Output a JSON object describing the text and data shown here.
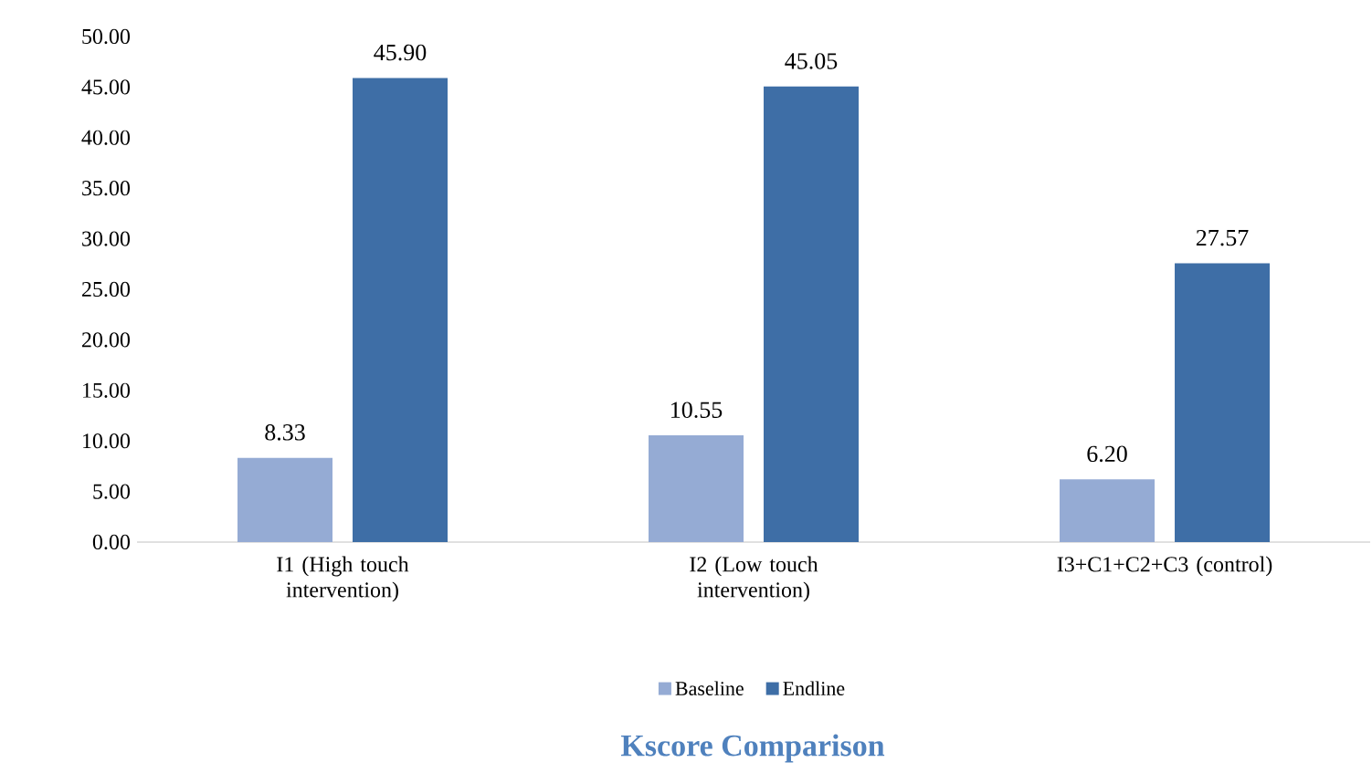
{
  "chart_data": {
    "type": "bar",
    "title": "Kscore Comparison",
    "categories": [
      "I1 (High touch intervention)",
      "I2 (Low touch intervention)",
      "I3+C1+C2+C3 (control)"
    ],
    "series": [
      {
        "name": "Baseline",
        "color": "#95abd4",
        "values": [
          8.33,
          10.55,
          6.2
        ],
        "value_labels": [
          "8.33",
          "10.55",
          "6.20"
        ]
      },
      {
        "name": "Endline",
        "color": "#3e6ea6",
        "values": [
          45.9,
          45.05,
          27.57
        ],
        "value_labels": [
          "45.90",
          "45.05",
          "27.57"
        ]
      }
    ],
    "ylim": [
      0,
      50
    ],
    "yticks": [
      {
        "value": 0,
        "label": "0.00"
      },
      {
        "value": 5,
        "label": "5.00"
      },
      {
        "value": 10,
        "label": "10.00"
      },
      {
        "value": 15,
        "label": "15.00"
      },
      {
        "value": 20,
        "label": "20.00"
      },
      {
        "value": 25,
        "label": "25.00"
      },
      {
        "value": 30,
        "label": "30.00"
      },
      {
        "value": 35,
        "label": "35.00"
      },
      {
        "value": 40,
        "label": "40.00"
      },
      {
        "value": 45,
        "label": "45.00"
      },
      {
        "value": 50,
        "label": "50.00"
      }
    ],
    "grid": false,
    "legend": "bottom"
  }
}
